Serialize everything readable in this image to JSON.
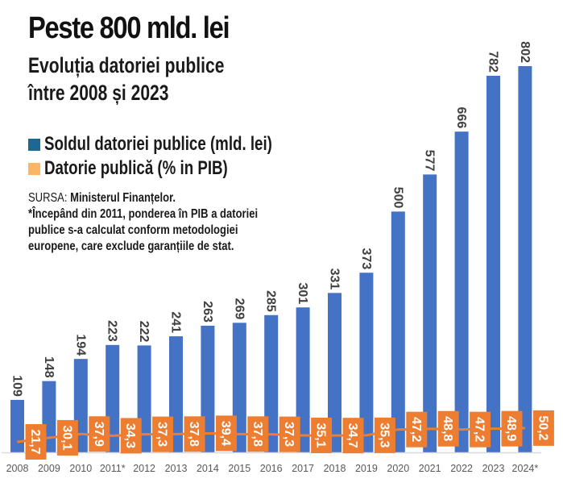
{
  "header": {
    "title": "Peste 800 mld. lei",
    "subtitle_line1": "Evoluția datoriei publice",
    "subtitle_line2": "între 2008 și 2023"
  },
  "legend": [
    {
      "label": "Soldul datoriei publice (mld. lei)",
      "color": "#1b6993"
    },
    {
      "label": "Datorie publică (% in PIB)",
      "color": "#fcb663"
    }
  ],
  "source": {
    "prefix": "SURSA: ",
    "name": "Ministerul Finanțelor.",
    "note_line1": "*Începând din 2011, ponderea în PIB a datoriei",
    "note_line2": "publice s-a calculat conform metodologiei",
    "note_line3": "europene, care exclude garanțiile de stat."
  },
  "colors": {
    "bar": "#4472c4",
    "line": "#ed7d31",
    "axis": "#d9d9d9"
  },
  "chart_data": {
    "type": "bar",
    "title": "Peste 800 mld. lei",
    "subtitle": "Evoluția datoriei publice între 2008 și 2023",
    "xlabel": "",
    "ylabel": "",
    "grid": false,
    "legend_position": "top-left",
    "categories": [
      "2008",
      "2009",
      "2010",
      "2011*",
      "2012",
      "2013",
      "2014",
      "2015",
      "2016",
      "2017",
      "2018",
      "2019",
      "2020",
      "2021",
      "2022",
      "2023",
      "2024*"
    ],
    "series": [
      {
        "name": "Soldul datoriei publice (mld. lei)",
        "type": "bar",
        "values": [
          109,
          148,
          194,
          223,
          222,
          241,
          263,
          269,
          285,
          301,
          331,
          373,
          500,
          577,
          666,
          782,
          802
        ],
        "labels": [
          "109",
          "148",
          "194",
          "223",
          "222",
          "241",
          "263",
          "269",
          "285",
          "301",
          "331",
          "373",
          "500",
          "577",
          "666",
          "782",
          "802"
        ]
      },
      {
        "name": "Datorie publică (% in PIB)",
        "type": "line",
        "values": [
          21.7,
          30.1,
          37.9,
          34.3,
          37.3,
          37.8,
          39.4,
          37.8,
          37.3,
          35.1,
          34.7,
          35.3,
          47.2,
          48.8,
          47.2,
          48.9,
          50.2
        ],
        "labels": [
          "21,7",
          "30,1",
          "37,9",
          "34,3",
          "37,3",
          "37,8",
          "39,4",
          "37,8",
          "37,3",
          "35,1",
          "34,7",
          "35,3",
          "47,2",
          "48,8",
          "47,2",
          "48,9",
          "50,2"
        ]
      }
    ],
    "ylim": [
      0,
      802
    ]
  }
}
